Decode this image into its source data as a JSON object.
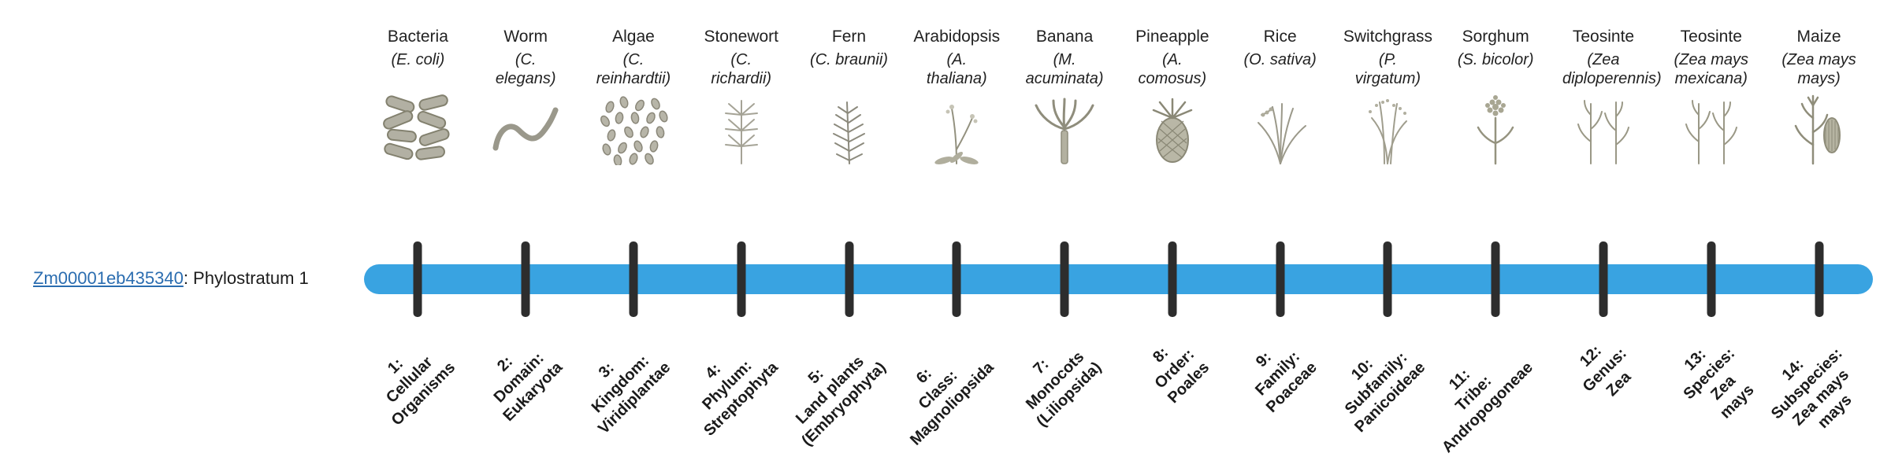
{
  "gene": {
    "id": "Zm00001eb435340",
    "suffix": ": Phylostratum 1"
  },
  "timeline": {
    "bar_color": "#39a3e1",
    "tick_color": "#2d2d2d",
    "link_color": "#2b6db0"
  },
  "organisms": [
    {
      "name": "Bacteria",
      "sci": "(E. coli)",
      "icon": "bacteria"
    },
    {
      "name": "Worm",
      "sci": "(C. elegans)",
      "icon": "worm"
    },
    {
      "name": "Algae",
      "sci": "(C. reinhardtii)",
      "icon": "algae"
    },
    {
      "name": "Stonewort",
      "sci": "(C. richardii)",
      "icon": "stonewort"
    },
    {
      "name": "Fern",
      "sci": "(C. braunii)",
      "icon": "fern"
    },
    {
      "name": "Arabidopsis",
      "sci": "(A. thaliana)",
      "icon": "arabidopsis"
    },
    {
      "name": "Banana",
      "sci": "(M. acuminata)",
      "icon": "banana"
    },
    {
      "name": "Pineapple",
      "sci": "(A. comosus)",
      "icon": "pineapple"
    },
    {
      "name": "Rice",
      "sci": "(O. sativa)",
      "icon": "rice"
    },
    {
      "name": "Switchgrass",
      "sci": "(P. virgatum)",
      "icon": "switchgrass"
    },
    {
      "name": "Sorghum",
      "sci": "(S. bicolor)",
      "icon": "sorghum"
    },
    {
      "name": "Teosinte",
      "sci": "(Zea diploperennis)",
      "icon": "teosinte"
    },
    {
      "name": "Teosinte",
      "sci": "(Zea mays mexicana)",
      "icon": "teosinte"
    },
    {
      "name": "Maize",
      "sci": "(Zea mays mays)",
      "icon": "maize"
    }
  ],
  "phylostrata": [
    {
      "lines": [
        "1:",
        "Cellular",
        "Organisms"
      ]
    },
    {
      "lines": [
        "2:",
        "Domain:",
        "Eukaryota"
      ]
    },
    {
      "lines": [
        "3:",
        "Kingdom:",
        "Viridiplantae"
      ]
    },
    {
      "lines": [
        "4:",
        "Phylum:",
        "Streptophyta"
      ]
    },
    {
      "lines": [
        "5:",
        "Land plants",
        "(Embryophyta)"
      ]
    },
    {
      "lines": [
        "6:",
        "Class:",
        "Magnoliopsida"
      ]
    },
    {
      "lines": [
        "7:",
        "Monocots",
        "(Liliopsida)"
      ]
    },
    {
      "lines": [
        "8:",
        "Order:",
        "Poales"
      ]
    },
    {
      "lines": [
        "9:",
        "Family:",
        "Poaceae"
      ]
    },
    {
      "lines": [
        "10:",
        "Subfamily:",
        "Panicoideae"
      ]
    },
    {
      "lines": [
        "11:",
        "Tribe:",
        "Andropogoneae"
      ]
    },
    {
      "lines": [
        "12:",
        "Genus:",
        "Zea"
      ]
    },
    {
      "lines": [
        "13:",
        "Species:",
        "Zea",
        "mays"
      ]
    },
    {
      "lines": [
        "14:",
        "Subspecies:",
        "Zea mays",
        "mays"
      ]
    }
  ]
}
